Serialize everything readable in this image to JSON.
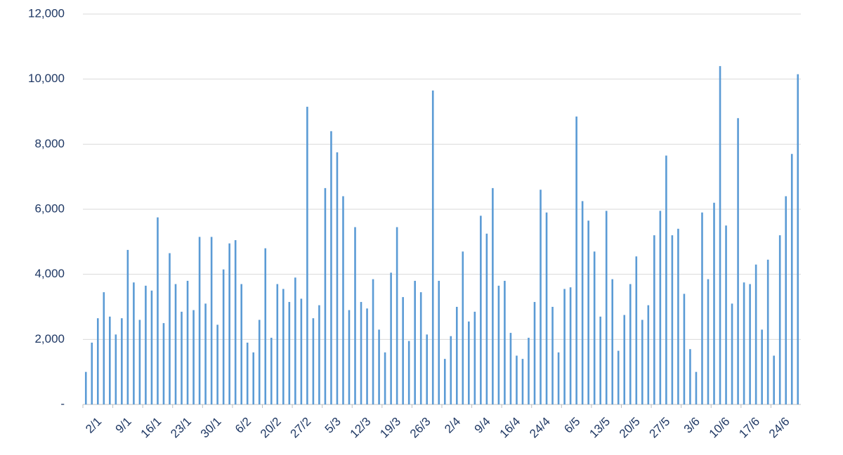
{
  "chart_data": {
    "type": "bar",
    "categories": [
      "2/1",
      null,
      null,
      null,
      null,
      "9/1",
      null,
      null,
      null,
      null,
      "16/1",
      null,
      null,
      null,
      null,
      "23/1",
      null,
      null,
      null,
      null,
      "30/1",
      null,
      null,
      null,
      null,
      "6/2",
      null,
      null,
      null,
      null,
      "20/2",
      null,
      null,
      null,
      null,
      "27/2",
      null,
      null,
      null,
      null,
      "5/3",
      null,
      null,
      null,
      null,
      "12/3",
      null,
      null,
      null,
      null,
      "19/3",
      null,
      null,
      null,
      null,
      "26/3",
      null,
      null,
      null,
      null,
      "2/4",
      null,
      null,
      null,
      null,
      "9/4",
      null,
      null,
      null,
      null,
      "16/4",
      null,
      null,
      null,
      null,
      "24/4",
      null,
      null,
      null,
      null,
      "6/5",
      null,
      null,
      null,
      null,
      "13/5",
      null,
      null,
      null,
      null,
      "20/5",
      null,
      null,
      null,
      null,
      "27/5",
      null,
      null,
      null,
      null,
      "3/6",
      null,
      null,
      null,
      null,
      "10/6",
      null,
      null,
      null,
      null,
      "17/6",
      null,
      null,
      null,
      null,
      "24/6",
      null,
      null,
      null,
      null
    ],
    "values": [
      1000,
      1900,
      2650,
      3450,
      2700,
      2150,
      2650,
      4750,
      3750,
      2600,
      3650,
      3500,
      5750,
      2500,
      4650,
      3700,
      2850,
      3800,
      2900,
      5150,
      3100,
      5150,
      2450,
      4150,
      4950,
      5050,
      3700,
      1900,
      1600,
      2600,
      4800,
      2050,
      3700,
      3550,
      3150,
      3900,
      3250,
      9150,
      2650,
      3050,
      6650,
      8400,
      7750,
      6400,
      2900,
      5450,
      3150,
      2950,
      3850,
      2300,
      1600,
      4050,
      5450,
      3300,
      1950,
      3800,
      3450,
      2150,
      9650,
      3800,
      1400,
      2100,
      3000,
      4700,
      2550,
      2850,
      5800,
      5250,
      6650,
      3650,
      3800,
      2200,
      1500,
      1400,
      2050,
      3150,
      6600,
      5900,
      3000,
      1600,
      3550,
      3600,
      8850,
      6250,
      5650,
      4700,
      2700,
      5950,
      3850,
      1650,
      2750,
      3700,
      4550,
      2600,
      3050,
      5200,
      5950,
      7650,
      5200,
      5400,
      3400,
      1700,
      1000,
      5900,
      3850,
      6200,
      10400,
      5500,
      3100,
      8800,
      3750,
      3700,
      4300,
      2300,
      4450,
      1500,
      5200,
      6400,
      7700,
      10150
    ],
    "color": "#5b9bd5",
    "ylim": [
      0,
      12000
    ],
    "yticks": [
      {
        "value": 0,
        "label": "-"
      },
      {
        "value": 2000,
        "label": "2,000"
      },
      {
        "value": 4000,
        "label": "4,000"
      },
      {
        "value": 6000,
        "label": "6,000"
      },
      {
        "value": 8000,
        "label": "8,000"
      },
      {
        "value": 10000,
        "label": "10,000"
      },
      {
        "value": 12000,
        "label": "12,000"
      }
    ],
    "grid": true
  }
}
